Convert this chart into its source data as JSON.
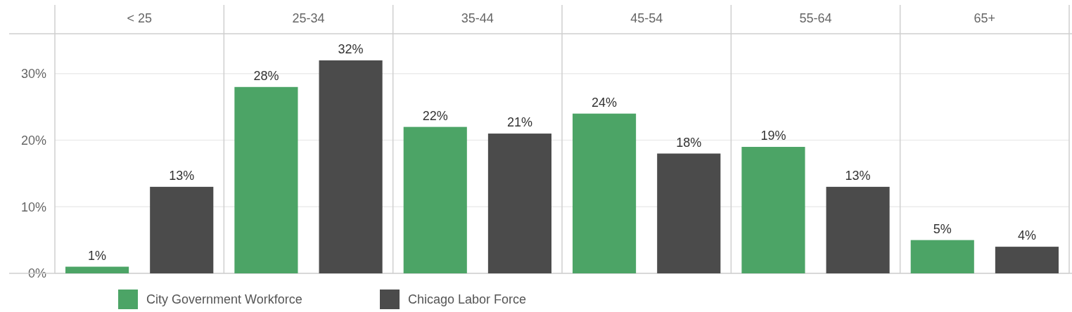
{
  "chart_data": {
    "type": "bar",
    "categories": [
      "< 25",
      "25-34",
      "35-44",
      "45-54",
      "55-64",
      "65+"
    ],
    "series": [
      {
        "name": "City Government Workforce",
        "color": "#4ca466",
        "values": [
          1,
          28,
          22,
          24,
          19,
          5
        ],
        "value_labels": [
          "1%",
          "28%",
          "22%",
          "24%",
          "19%",
          "5%"
        ]
      },
      {
        "name": "Chicago Labor Force",
        "color": "#4b4b4b",
        "values": [
          13,
          32,
          21,
          18,
          13,
          4
        ],
        "value_labels": [
          "13%",
          "32%",
          "21%",
          "18%",
          "13%",
          "4%"
        ]
      }
    ],
    "ylim": [
      0,
      36
    ],
    "yticks": [
      {
        "value": 0,
        "label": "0%"
      },
      {
        "value": 10,
        "label": "10%"
      },
      {
        "value": 20,
        "label": "20%"
      },
      {
        "value": 30,
        "label": "30%"
      }
    ],
    "grid": "y",
    "legend": "bottom"
  }
}
